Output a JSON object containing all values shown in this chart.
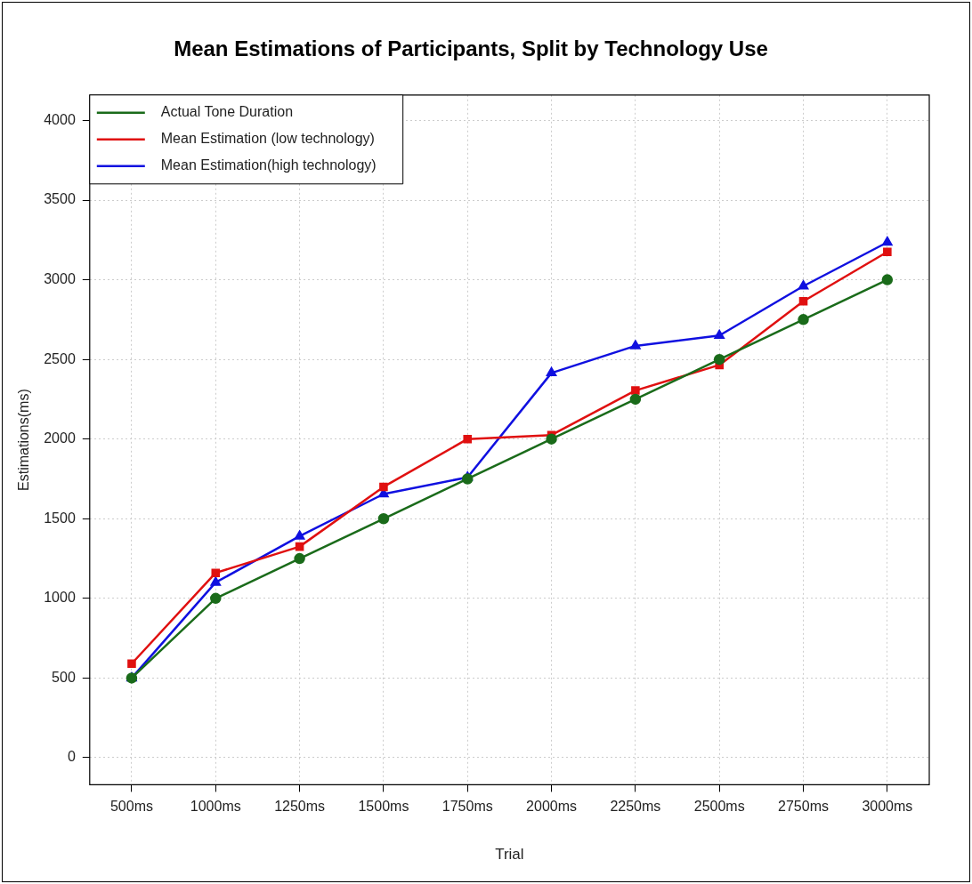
{
  "chart_data": {
    "type": "line",
    "title": "Mean Estimations of Participants, Split by Technology Use",
    "xlabel": "Trial",
    "ylabel": "Estimations(ms)",
    "categories": [
      "500ms",
      "1000ms",
      "1250ms",
      "1500ms",
      "1750ms",
      "2000ms",
      "2250ms",
      "2500ms",
      "2750ms",
      "3000ms"
    ],
    "series": [
      {
        "name": "Actual Tone Duration",
        "color": "#1a6b1a",
        "marker": "circle",
        "values": [
          500,
          1000,
          1250,
          1500,
          1750,
          2000,
          2250,
          2500,
          2750,
          3000
        ]
      },
      {
        "name": "Mean Estimation (low technology)",
        "color": "#e01010",
        "marker": "square",
        "values": [
          590,
          1160,
          1325,
          1700,
          2000,
          2025,
          2305,
          2465,
          2865,
          3175
        ]
      },
      {
        "name": "Mean Estimation(high technology)",
        "color": "#1010e0",
        "marker": "triangle",
        "values": [
          500,
          1100,
          1390,
          1655,
          1760,
          2415,
          2585,
          2650,
          2960,
          3235
        ]
      }
    ],
    "ylim": [
      -170,
      4160
    ],
    "yticks": [
      0,
      500,
      1000,
      1500,
      2000,
      2500,
      3000,
      3500,
      4000
    ],
    "grid": true,
    "legend": "top left",
    "line_style": "solid"
  }
}
